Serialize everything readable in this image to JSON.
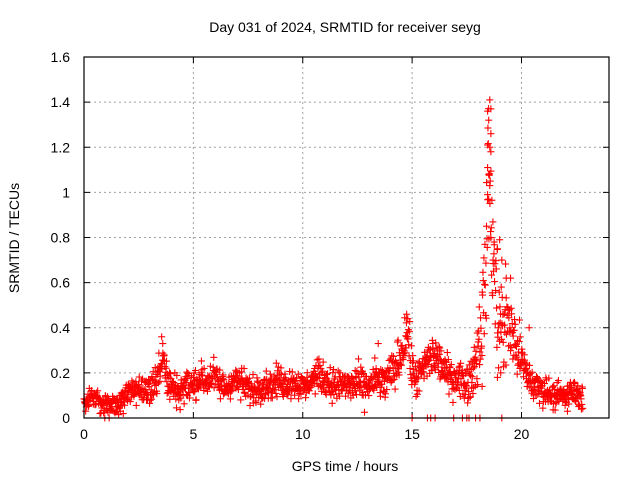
{
  "chart_data": {
    "type": "scatter",
    "title": "Day 031 of 2024, SRMTID for receiver seyg",
    "xlabel": "GPS time / hours",
    "ylabel": "SRMTID / TECUs",
    "xlim": [
      0,
      24
    ],
    "ylim": [
      0,
      1.6
    ],
    "xticks": [
      0,
      5,
      10,
      15,
      20
    ],
    "xtick_labels": [
      "0",
      "5",
      "10",
      "15",
      "20"
    ],
    "yticks": [
      0,
      0.2,
      0.4,
      0.6,
      0.8,
      1.0,
      1.2,
      1.4,
      1.6
    ],
    "ytick_labels": [
      "0",
      "0.2",
      "0.4",
      "0.6",
      "0.8",
      "1",
      "1.2",
      "1.4",
      "1.6"
    ],
    "grid": true,
    "marker": "+",
    "series": [
      {
        "name": "SRMTID",
        "color": "#ff0000",
        "baseline": [
          [
            0.0,
            0.07
          ],
          [
            0.3,
            0.1
          ],
          [
            0.6,
            0.08
          ],
          [
            0.9,
            0.05
          ],
          [
            1.2,
            0.07
          ],
          [
            1.5,
            0.06
          ],
          [
            1.8,
            0.09
          ],
          [
            2.1,
            0.12
          ],
          [
            2.4,
            0.13
          ],
          [
            2.7,
            0.12
          ],
          [
            3.0,
            0.13
          ],
          [
            3.3,
            0.15
          ],
          [
            3.5,
            0.22
          ],
          [
            3.6,
            0.28
          ],
          [
            3.8,
            0.16
          ],
          [
            4.1,
            0.13
          ],
          [
            4.4,
            0.12
          ],
          [
            4.7,
            0.15
          ],
          [
            5.0,
            0.14
          ],
          [
            5.3,
            0.18
          ],
          [
            5.6,
            0.16
          ],
          [
            5.9,
            0.19
          ],
          [
            6.2,
            0.15
          ],
          [
            6.5,
            0.13
          ],
          [
            6.8,
            0.17
          ],
          [
            7.1,
            0.16
          ],
          [
            7.4,
            0.14
          ],
          [
            7.7,
            0.12
          ],
          [
            8.0,
            0.14
          ],
          [
            8.3,
            0.15
          ],
          [
            8.6,
            0.14
          ],
          [
            8.9,
            0.17
          ],
          [
            9.2,
            0.15
          ],
          [
            9.5,
            0.16
          ],
          [
            9.8,
            0.15
          ],
          [
            10.1,
            0.13
          ],
          [
            10.4,
            0.17
          ],
          [
            10.7,
            0.19
          ],
          [
            11.0,
            0.17
          ],
          [
            11.3,
            0.15
          ],
          [
            11.6,
            0.14
          ],
          [
            11.9,
            0.15
          ],
          [
            12.2,
            0.14
          ],
          [
            12.5,
            0.16
          ],
          [
            12.8,
            0.13
          ],
          [
            13.1,
            0.15
          ],
          [
            13.4,
            0.17
          ],
          [
            13.7,
            0.15
          ],
          [
            14.0,
            0.19
          ],
          [
            14.3,
            0.23
          ],
          [
            14.6,
            0.32
          ],
          [
            14.8,
            0.38
          ],
          [
            15.0,
            0.2
          ],
          [
            15.3,
            0.17
          ],
          [
            15.6,
            0.24
          ],
          [
            15.9,
            0.27
          ],
          [
            16.2,
            0.26
          ],
          [
            16.5,
            0.21
          ],
          [
            16.8,
            0.17
          ],
          [
            17.1,
            0.19
          ],
          [
            17.4,
            0.15
          ],
          [
            17.7,
            0.18
          ],
          [
            18.0,
            0.3
          ],
          [
            18.2,
            0.45
          ],
          [
            18.4,
            0.7
          ],
          [
            18.5,
            1.15
          ],
          [
            18.6,
            0.9
          ],
          [
            18.8,
            0.55
          ],
          [
            19.0,
            0.45
          ],
          [
            19.2,
            0.38
          ],
          [
            19.4,
            0.45
          ],
          [
            19.6,
            0.35
          ],
          [
            19.8,
            0.32
          ],
          [
            20.0,
            0.25
          ],
          [
            20.2,
            0.2
          ],
          [
            20.5,
            0.15
          ],
          [
            20.8,
            0.13
          ],
          [
            21.1,
            0.12
          ],
          [
            21.4,
            0.11
          ],
          [
            21.7,
            0.1
          ],
          [
            22.0,
            0.09
          ],
          [
            22.3,
            0.12
          ],
          [
            22.6,
            0.1
          ],
          [
            22.8,
            0.09
          ]
        ],
        "spread": [
          [
            0.0,
            0.03
          ],
          [
            3.5,
            0.06
          ],
          [
            10.0,
            0.05
          ],
          [
            14.0,
            0.07
          ],
          [
            15.0,
            0.08
          ],
          [
            17.5,
            0.06
          ],
          [
            18.2,
            0.15
          ],
          [
            18.5,
            0.3
          ],
          [
            19.0,
            0.2
          ],
          [
            19.8,
            0.12
          ],
          [
            20.3,
            0.06
          ],
          [
            22.8,
            0.04
          ]
        ],
        "outliers": [
          [
            18.55,
            1.41
          ],
          [
            18.45,
            1.36
          ],
          [
            18.6,
            1.37
          ],
          [
            18.5,
            1.32
          ],
          [
            18.6,
            1.26
          ],
          [
            18.45,
            1.21
          ],
          [
            18.55,
            1.2
          ],
          [
            18.6,
            1.18
          ],
          [
            18.45,
            1.11
          ],
          [
            18.5,
            1.08
          ],
          [
            18.55,
            1.03
          ],
          [
            18.45,
            0.99
          ],
          [
            18.5,
            0.97
          ],
          [
            18.4,
            0.85
          ],
          [
            18.6,
            0.8
          ],
          [
            18.75,
            0.78
          ],
          [
            19.0,
            0.79
          ],
          [
            18.9,
            0.75
          ],
          [
            18.7,
            0.7
          ],
          [
            19.1,
            0.7
          ],
          [
            19.3,
            0.62
          ],
          [
            19.5,
            0.62
          ],
          [
            3.55,
            0.36
          ],
          [
            3.6,
            0.33
          ],
          [
            14.75,
            0.46
          ],
          [
            14.8,
            0.44
          ],
          [
            20.35,
            0.4
          ],
          [
            15.95,
            0.33
          ],
          [
            13.45,
            0.33
          ],
          [
            18.2,
            0.14
          ],
          [
            18.9,
            0.18
          ],
          [
            19.05,
            0.2
          ],
          [
            22.1,
            0.03
          ],
          [
            0.95,
            0.0
          ],
          [
            1.15,
            0.0
          ],
          [
            15.0,
            0.0
          ],
          [
            15.7,
            0.0
          ],
          [
            15.85,
            0.0
          ],
          [
            16.05,
            0.0
          ],
          [
            16.9,
            0.0
          ],
          [
            17.3,
            0.0
          ],
          [
            17.5,
            0.0
          ],
          [
            17.6,
            0.0
          ],
          [
            17.9,
            0.0
          ],
          [
            18.1,
            0.0
          ],
          [
            19.1,
            0.0
          ]
        ]
      }
    ]
  }
}
